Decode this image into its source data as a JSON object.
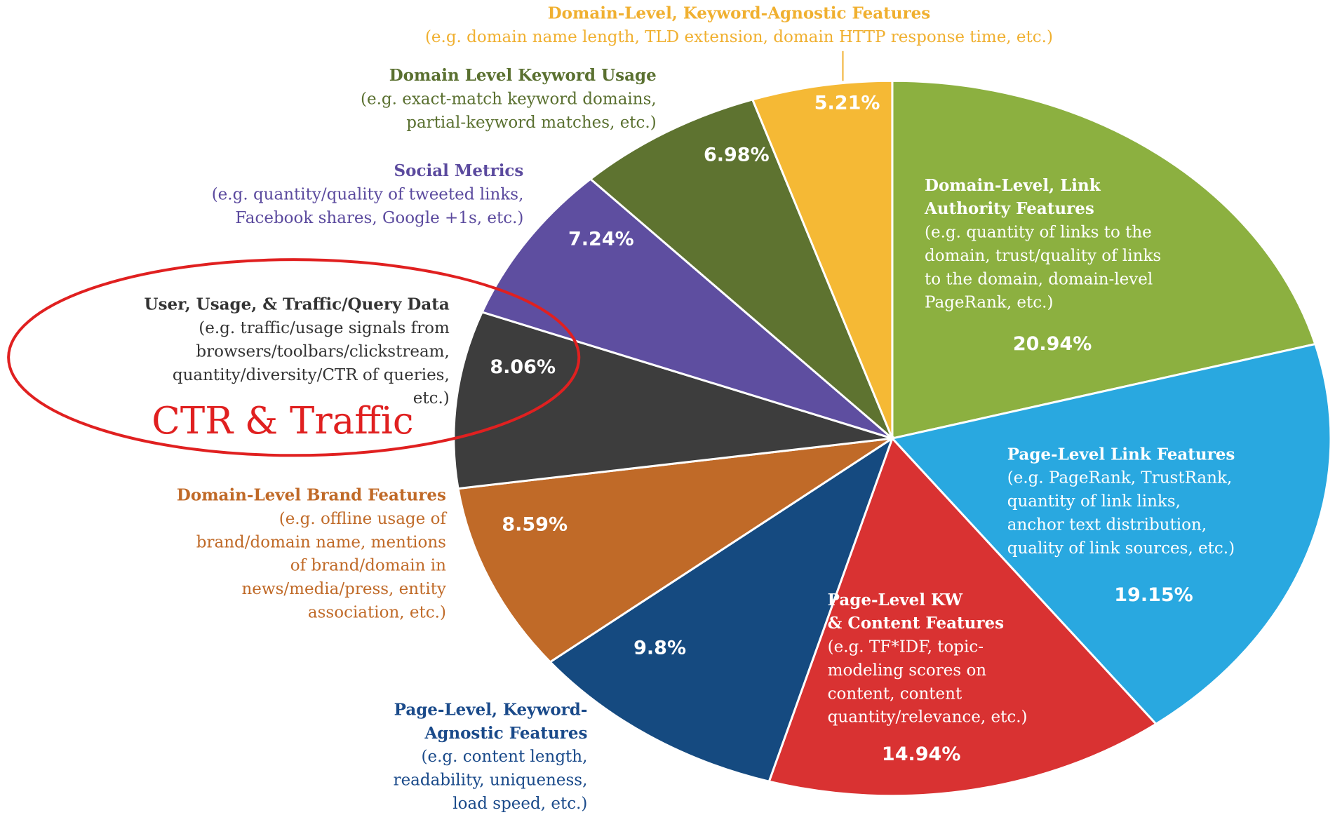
{
  "chart_data": {
    "type": "pie",
    "labels": [
      {
        "title": [
          "Domain-Level, Link",
          "Authority Features"
        ],
        "desc": [
          "(e.g. quantity of links to the",
          "domain, trust/quality of links",
          "to the domain, domain-level",
          "PageRank, etc.)"
        ]
      },
      {
        "title": [
          "Page-Level Link Features"
        ],
        "desc": [
          "(e.g. PageRank, TrustRank,",
          "quantity of link links,",
          "anchor text distribution,",
          "quality of link sources, etc.)"
        ]
      },
      {
        "title": [
          "Page-Level KW",
          "& Content Features"
        ],
        "desc": [
          "(e.g. TF*IDF, topic-",
          "modeling scores on",
          "content, content",
          "quantity/relevance, etc.)"
        ]
      },
      {
        "title": [
          "Page-Level, Keyword-",
          "Agnostic Features"
        ],
        "desc": [
          "(e.g. content length,",
          "readability, uniqueness,",
          "load speed, etc.)"
        ]
      },
      {
        "title": [
          "Domain-Level Brand Features"
        ],
        "desc": [
          "(e.g. offline usage of",
          "brand/domain name, mentions",
          "of brand/domain in",
          "news/media/press, entity",
          "association, etc.)"
        ]
      },
      {
        "title": [
          "User, Usage, & Traffic/Query Data"
        ],
        "desc": [
          "(e.g. traffic/usage signals from",
          "browsers/toolbars/clickstream,",
          "quantity/diversity/CTR of queries,",
          "etc.)"
        ]
      },
      {
        "title": [
          "Social Metrics"
        ],
        "desc": [
          "(e.g. quantity/quality of tweeted links,",
          "Facebook shares, Google +1s, etc.)"
        ]
      },
      {
        "title": [
          "Domain Level Keyword Usage"
        ],
        "desc": [
          "(e.g. exact-match keyword domains,",
          "partial-keyword matches, etc.)"
        ]
      },
      {
        "title": [
          "Domain-Level, Keyword-Agnostic Features"
        ],
        "desc": [
          "(e.g. domain name length, TLD extension, domain HTTP response time, etc.)"
        ]
      }
    ],
    "values": [
      20.94,
      19.15,
      14.94,
      9.8,
      8.59,
      8.06,
      7.24,
      6.98,
      5.21
    ],
    "value_labels": [
      "20.94%",
      "19.15%",
      "14.94%",
      "9.8%",
      "8.59%",
      "8.06%",
      "7.24%",
      "6.98%",
      "5.21%"
    ],
    "colors": [
      "#8cb040",
      "#29a8e0",
      "#d93232",
      "#154a80",
      "#c06a28",
      "#3d3d3d",
      "#5e4ea0",
      "#5e7330",
      "#f5b935"
    ],
    "annotation": "CTR & Traffic"
  }
}
